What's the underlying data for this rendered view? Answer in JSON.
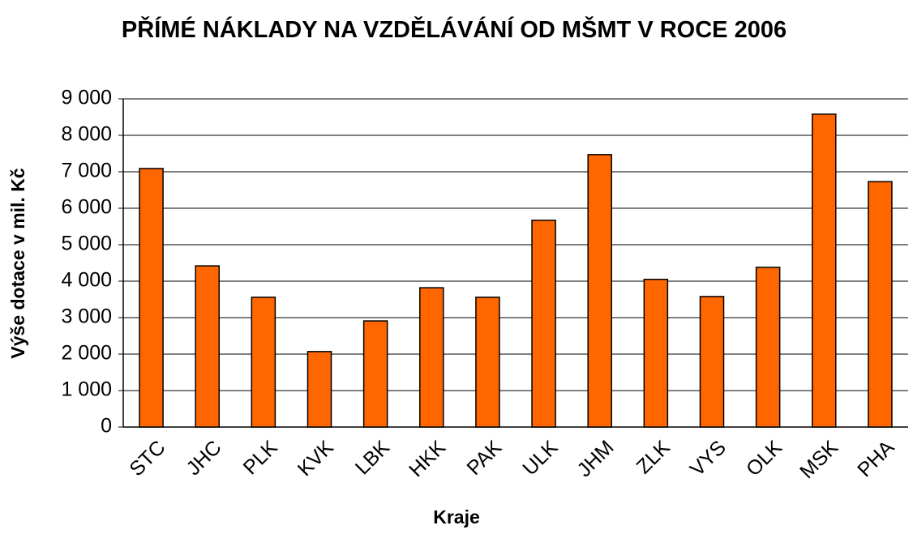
{
  "chart_data": {
    "type": "bar",
    "title": "PŘÍMÉ NÁKLADY NA VZDĚLÁVÁNÍ OD MŠMT V ROCE 2006",
    "x_label": "Kraje",
    "y_label": "Výše dotace v mil. Kč",
    "categories": [
      "STC",
      "JHC",
      "PLK",
      "KVK",
      "LBK",
      "HKK",
      "PAK",
      "ULK",
      "JHM",
      "ZLK",
      "VYS",
      "OLK",
      "MSK",
      "PHA"
    ],
    "values": [
      7090,
      4420,
      3560,
      2070,
      2910,
      3820,
      3560,
      5670,
      7470,
      4050,
      3580,
      4380,
      8580,
      6730
    ],
    "color": "#ff6600",
    "ylim": [
      0,
      9000
    ],
    "yticks": [
      0,
      {
        "value": 1000,
        "label": "1 000"
      },
      {
        "value": 2000,
        "label": "2 000"
      },
      {
        "value": 3000,
        "label": "3 000"
      },
      {
        "value": 4000,
        "label": "4 000"
      },
      {
        "value": 5000,
        "label": "5 000"
      },
      {
        "value": 6000,
        "label": "6 000"
      },
      {
        "value": 7000,
        "label": "7 000"
      },
      {
        "value": 8000,
        "label": "8 000"
      },
      {
        "value": 9000,
        "label": "9 000"
      }
    ],
    "grid": true
  }
}
